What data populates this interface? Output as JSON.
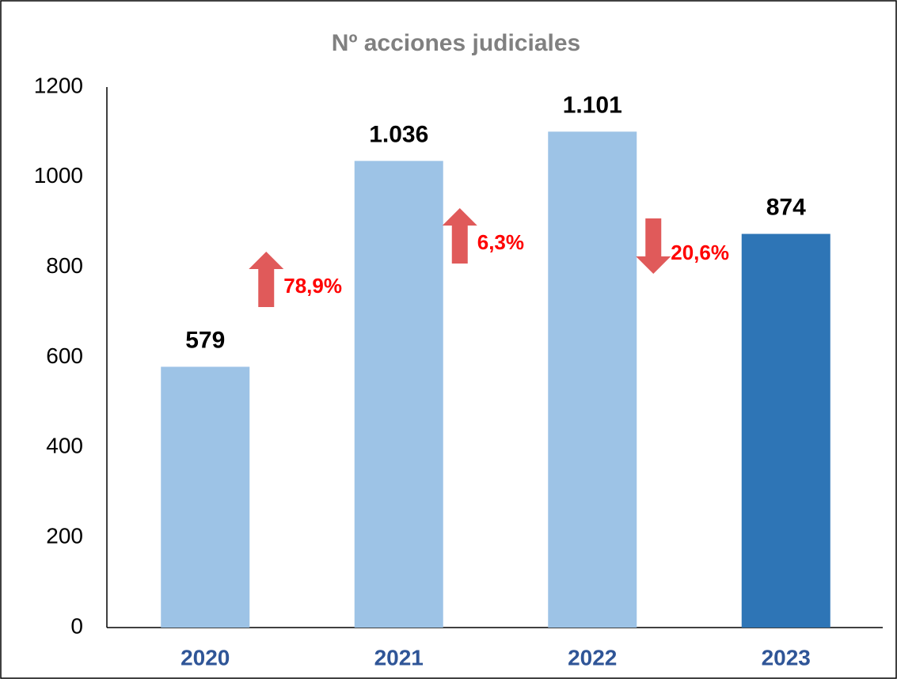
{
  "chart_data": {
    "type": "bar",
    "title": "Nº acciones judiciales",
    "categories": [
      "2020",
      "2021",
      "2022",
      "2023"
    ],
    "values": [
      579,
      1036,
      1101,
      874
    ],
    "value_labels": [
      "579",
      "1.036",
      "1.101",
      "874"
    ],
    "colors": [
      "#9dc3e6",
      "#9dc3e6",
      "#9dc3e6",
      "#2e75b6"
    ],
    "ylim": [
      0,
      1200
    ],
    "yticks": [
      0,
      200,
      400,
      600,
      800,
      1000,
      1200
    ],
    "grid": false,
    "annotations": [
      {
        "text": "78,9%",
        "direction": "up"
      },
      {
        "text": "6,3%",
        "direction": "up"
      },
      {
        "text": "20,6%",
        "direction": "down"
      }
    ],
    "annotation_color": "#ff0000",
    "arrow_color": "#e05a5a"
  }
}
